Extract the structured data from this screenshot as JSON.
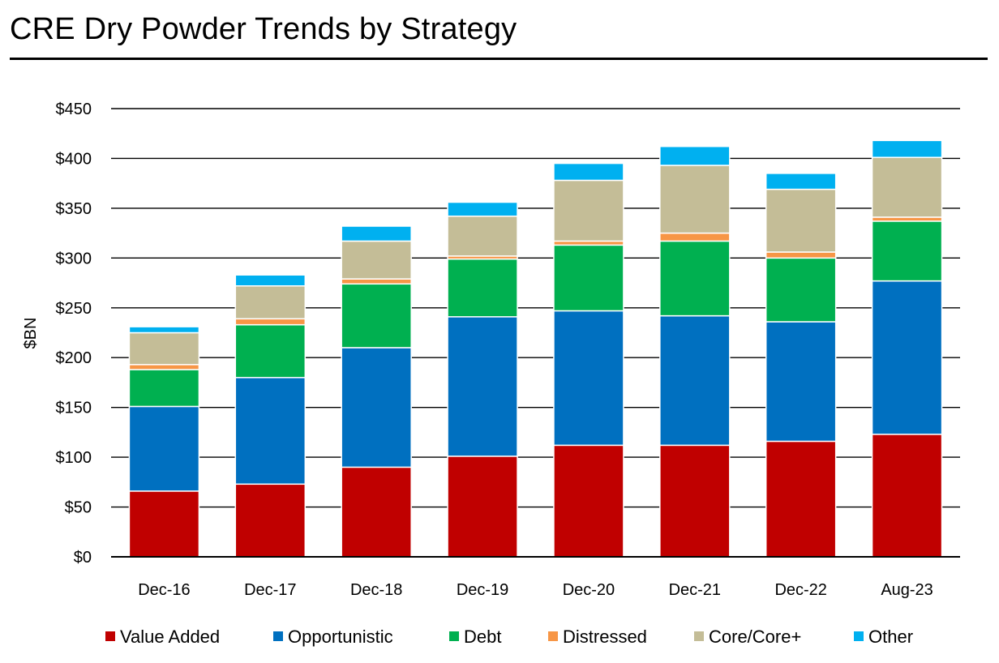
{
  "page": {
    "title": "CRE Dry Powder Trends by Strategy"
  },
  "chart_data": {
    "type": "bar",
    "stacked": true,
    "title": "",
    "xlabel": "",
    "ylabel": "$BN",
    "ylim": [
      0,
      450
    ],
    "yticks": [
      0,
      50,
      100,
      150,
      200,
      250,
      300,
      350,
      400,
      450
    ],
    "ytick_labels": [
      "$0",
      "$50",
      "$100",
      "$150",
      "$200",
      "$250",
      "$300",
      "$350",
      "$400",
      "$450"
    ],
    "grid": true,
    "legend_position": "bottom",
    "categories": [
      "Dec-16",
      "Dec-17",
      "Dec-18",
      "Dec-19",
      "Dec-20",
      "Dec-21",
      "Dec-22",
      "Aug-23"
    ],
    "series": [
      {
        "name": "Value Added",
        "color": "#c00000",
        "values": [
          66,
          73,
          90,
          101,
          112,
          112,
          116,
          123
        ]
      },
      {
        "name": "Opportunistic",
        "color": "#0070c0",
        "values": [
          85,
          107,
          120,
          140,
          135,
          130,
          120,
          154
        ]
      },
      {
        "name": "Debt",
        "color": "#00b050",
        "values": [
          37,
          53,
          64,
          58,
          66,
          75,
          64,
          60
        ]
      },
      {
        "name": "Distressed",
        "color": "#f79646",
        "values": [
          5,
          6,
          5,
          3,
          4,
          8,
          6,
          4
        ]
      },
      {
        "name": "Core/Core+",
        "color": "#c4bd97",
        "values": [
          32,
          33,
          38,
          40,
          61,
          68,
          63,
          60
        ]
      },
      {
        "name": "Other",
        "color": "#00b0f0",
        "values": [
          6,
          11,
          15,
          14,
          17,
          19,
          16,
          17
        ]
      }
    ]
  }
}
